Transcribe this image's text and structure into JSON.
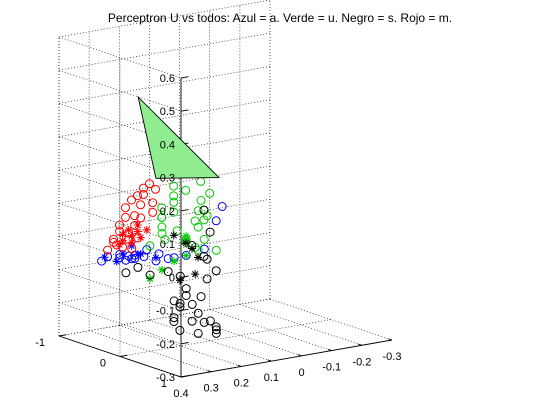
{
  "chart_data": {
    "type": "scatter",
    "projection": "3d",
    "title": "Perceptron U vs todos: Azul = a. Verde = u. Negro = s. Rojo = m.",
    "xlabel": "",
    "ylabel": "",
    "zlabel": "",
    "grid": true,
    "x_ticks": [
      "0.4",
      "0.3",
      "0.2",
      "0.1",
      "0",
      "-0.1",
      "-0.2",
      "-0.3"
    ],
    "y_ticks": [
      "1",
      "0",
      "-1"
    ],
    "z_ticks": [
      "0.6",
      "0.5",
      "0.4",
      "0.3",
      "0.2",
      "0.1",
      "0",
      "-0.1",
      "-0.2",
      "-0.3"
    ],
    "xlim": [
      -0.3,
      0.4
    ],
    "ylim": [
      -1,
      1
    ],
    "zlim": [
      -0.3,
      0.6
    ],
    "plane_color": "#90ee90",
    "decision_plane": [
      [
        0.38,
        0.2,
        0.49
      ],
      [
        0.2,
        -0.4,
        0.18
      ],
      [
        -0.05,
        -0.6,
        0.13
      ]
    ],
    "series": [
      {
        "name": "a",
        "color": "#0000ff",
        "marker": "o",
        "values": [
          [
            0.36,
            -0.5,
            -0.05
          ],
          [
            0.34,
            -0.5,
            -0.04
          ],
          [
            0.32,
            -0.4,
            -0.03
          ],
          [
            0.3,
            -0.5,
            -0.05
          ],
          [
            0.29,
            -0.4,
            -0.04
          ],
          [
            0.28,
            -0.5,
            -0.06
          ],
          [
            0.27,
            -0.4,
            -0.05
          ],
          [
            0.26,
            -0.3,
            -0.04
          ],
          [
            0.25,
            -0.5,
            -0.05
          ],
          [
            0.23,
            -0.4,
            -0.03
          ],
          [
            0.21,
            -0.3,
            -0.04
          ],
          [
            0.3,
            -0.3,
            -0.04
          ],
          [
            0.24,
            -0.2,
            -0.05
          ],
          [
            0.22,
            -0.1,
            -0.04
          ],
          [
            0.18,
            -0.2,
            -0.05
          ],
          [
            0.16,
            -0.1,
            -0.04
          ],
          [
            0.08,
            -0.2,
            -0.04
          ],
          [
            -0.02,
            -0.4,
            0.06
          ],
          [
            0.0,
            -0.4,
            0.02
          ]
        ]
      },
      {
        "name": "a",
        "color": "#0000ff",
        "marker": "*",
        "values": [
          [
            0.35,
            -0.5,
            -0.04
          ],
          [
            0.31,
            -0.4,
            -0.03
          ],
          [
            0.28,
            -0.3,
            -0.03
          ],
          [
            0.25,
            -0.4,
            -0.04
          ],
          [
            0.33,
            -0.4,
            -0.05
          ],
          [
            0.22,
            -0.3,
            -0.05
          ],
          [
            0.26,
            -0.5,
            -0.02
          ]
        ]
      },
      {
        "name": "u",
        "color": "#00c800",
        "marker": "o",
        "values": [
          [
            0.2,
            -0.3,
            0.02
          ],
          [
            0.18,
            -0.4,
            0.03
          ],
          [
            0.16,
            -0.5,
            0.05
          ],
          [
            0.14,
            -0.6,
            0.04
          ],
          [
            0.12,
            -0.7,
            0.06
          ],
          [
            0.1,
            -0.6,
            0.05
          ],
          [
            0.08,
            -0.7,
            0.07
          ],
          [
            0.06,
            -0.8,
            0.08
          ],
          [
            0.04,
            -0.9,
            0.1
          ],
          [
            0.02,
            -0.8,
            0.09
          ],
          [
            -0.05,
            -0.9,
            0.1
          ],
          [
            -0.1,
            -1.0,
            0.05
          ],
          [
            0.05,
            -0.3,
            0.05
          ],
          [
            0.12,
            -0.3,
            -0.02
          ],
          [
            0.1,
            -0.2,
            -0.04
          ],
          [
            0.08,
            -0.3,
            0.02
          ],
          [
            0.06,
            -0.3,
            -0.02
          ],
          [
            0.04,
            -0.2,
            -0.05
          ],
          [
            0.14,
            -0.2,
            0.0
          ],
          [
            0.02,
            -0.5,
            0.02
          ],
          [
            0.0,
            -0.6,
            0.04
          ],
          [
            0.22,
            -0.4,
            -0.02
          ],
          [
            0.19,
            -0.3,
            0.0
          ],
          [
            0.15,
            -0.3,
            0.02
          ],
          [
            0.11,
            -0.2,
            -0.03
          ],
          [
            0.09,
            -0.3,
            0.04
          ],
          [
            0.06,
            -0.4,
            0.06
          ],
          [
            0.03,
            -0.5,
            0.08
          ]
        ]
      },
      {
        "name": "u",
        "color": "#00c800",
        "marker": "*",
        "values": [
          [
            0.26,
            -0.2,
            -0.1
          ],
          [
            0.22,
            -0.2,
            -0.08
          ],
          [
            0.2,
            -0.3,
            -0.09
          ],
          [
            0.18,
            -0.2,
            -0.06
          ],
          [
            0.16,
            -0.3,
            -0.07
          ],
          [
            0.14,
            -0.2,
            -0.05
          ],
          [
            0.24,
            -0.3,
            -0.11
          ],
          [
            0.12,
            -0.3,
            0.0
          ],
          [
            0.1,
            -0.4,
            -0.02
          ]
        ]
      },
      {
        "name": "s",
        "color": "#000000",
        "marker": "o",
        "values": [
          [
            0.34,
            -0.2,
            -0.07
          ],
          [
            0.3,
            -0.2,
            -0.06
          ],
          [
            0.28,
            -0.1,
            -0.08
          ],
          [
            0.24,
            0.0,
            -0.07
          ],
          [
            0.2,
            0.0,
            -0.09
          ],
          [
            0.16,
            -0.1,
            -0.14
          ],
          [
            0.14,
            -0.2,
            -0.17
          ],
          [
            0.12,
            -0.2,
            -0.2
          ],
          [
            0.1,
            -0.2,
            -0.23
          ],
          [
            0.08,
            -0.1,
            -0.25
          ],
          [
            0.06,
            -0.1,
            -0.28
          ],
          [
            0.04,
            -0.2,
            -0.3
          ],
          [
            0.02,
            -0.3,
            -0.29
          ],
          [
            0.06,
            -0.3,
            -0.27
          ],
          [
            0.08,
            -0.3,
            -0.3
          ],
          [
            0.1,
            -0.3,
            -0.26
          ],
          [
            0.12,
            -0.4,
            -0.22
          ],
          [
            0.05,
            -0.4,
            -0.2
          ],
          [
            0.03,
            -0.4,
            -0.15
          ],
          [
            0.01,
            -0.5,
            -0.1
          ],
          [
            0.0,
            -0.4,
            -0.13
          ],
          [
            0.02,
            -0.5,
            -0.09
          ],
          [
            0.04,
            -0.6,
            -0.06
          ],
          [
            0.0,
            -0.5,
            -0.02
          ],
          [
            0.14,
            -0.3,
            -0.2
          ],
          [
            0.16,
            -0.3,
            -0.24
          ],
          [
            0.18,
            -0.2,
            -0.18
          ],
          [
            0.1,
            -0.5,
            -0.3
          ],
          [
            0.12,
            -0.5,
            -0.27
          ],
          [
            0.0,
            -0.6,
            0.04
          ]
        ]
      },
      {
        "name": "s",
        "color": "#000000",
        "marker": "*",
        "values": [
          [
            0.1,
            -0.6,
            -0.02
          ],
          [
            0.08,
            -0.5,
            -0.04
          ],
          [
            0.04,
            -0.5,
            -0.09
          ],
          [
            0.12,
            -0.4,
            -0.14
          ],
          [
            0.06,
            -0.5,
            -0.06
          ],
          [
            0.09,
            -0.3,
            -0.12
          ]
        ]
      },
      {
        "name": "m",
        "color": "#ff0000",
        "marker": "o",
        "values": [
          [
            0.34,
            -0.5,
            -0.02
          ],
          [
            0.32,
            -0.5,
            0.0
          ],
          [
            0.3,
            -0.6,
            0.0
          ],
          [
            0.28,
            -0.6,
            0.02
          ],
          [
            0.26,
            -0.7,
            0.03
          ],
          [
            0.24,
            -0.7,
            0.05
          ],
          [
            0.22,
            -0.8,
            0.07
          ],
          [
            0.2,
            -0.8,
            0.09
          ],
          [
            0.18,
            -0.8,
            0.1
          ],
          [
            0.16,
            -0.8,
            0.1
          ],
          [
            0.14,
            -0.9,
            0.11
          ],
          [
            0.12,
            -0.9,
            0.12
          ],
          [
            0.1,
            -0.9,
            0.1
          ],
          [
            0.31,
            -0.4,
            -0.01
          ],
          [
            0.27,
            -0.5,
            0.02
          ],
          [
            0.29,
            -0.4,
            0.01
          ],
          [
            0.25,
            -0.5,
            0.04
          ],
          [
            0.23,
            -0.6,
            0.06
          ],
          [
            0.21,
            -0.6,
            0.05
          ],
          [
            0.19,
            -0.7,
            0.08
          ],
          [
            0.33,
            -0.4,
            0.0
          ],
          [
            0.17,
            -0.6,
            0.06
          ],
          [
            0.15,
            -0.7,
            0.08
          ],
          [
            0.3,
            -0.3,
            -0.01
          ],
          [
            0.26,
            -0.4,
            0.01
          ]
        ]
      },
      {
        "name": "m",
        "color": "#ff0000",
        "marker": "*",
        "values": [
          [
            0.3,
            -0.5,
            -0.01
          ],
          [
            0.28,
            -0.4,
            0.0
          ],
          [
            0.26,
            -0.5,
            0.01
          ],
          [
            0.24,
            -0.5,
            0.02
          ],
          [
            0.22,
            -0.6,
            0.03
          ],
          [
            0.27,
            -0.6,
            0.01
          ],
          [
            0.25,
            -0.6,
            0.02
          ],
          [
            0.23,
            -0.5,
            0.0
          ],
          [
            0.29,
            -0.5,
            0.0
          ],
          [
            0.21,
            -0.5,
            0.02
          ]
        ]
      }
    ]
  }
}
